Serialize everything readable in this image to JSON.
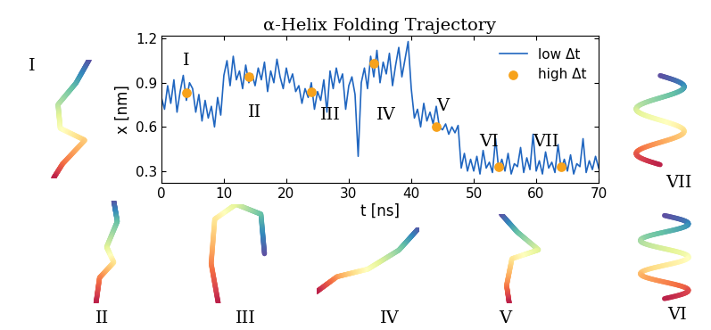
{
  "chart_data": {
    "type": "line",
    "title": "α-Helix Folding Trajectory",
    "x_label": "t [ns]",
    "y_label": "x [nm]",
    "xlim": [
      0,
      70
    ],
    "xticks": [
      0,
      10,
      20,
      30,
      40,
      50,
      60,
      70
    ],
    "ylim": [
      0.22,
      1.22
    ],
    "yticks": [
      0.3,
      0.6,
      0.9,
      1.2
    ],
    "legend": "upper right",
    "grid": false,
    "series": [
      {
        "name": "low Δt",
        "type": "line",
        "color": "#2066c0",
        "x": [
          0,
          0.5,
          1,
          1.5,
          2,
          2.5,
          3,
          3.5,
          4,
          4.5,
          5,
          5.5,
          6,
          6.5,
          7,
          7.5,
          8,
          8.5,
          9,
          9.5,
          10,
          10.5,
          11,
          11.5,
          12,
          12.5,
          13,
          13.5,
          14,
          14.5,
          15,
          15.5,
          16,
          16.5,
          17,
          17.5,
          18,
          18.5,
          19,
          19.5,
          20,
          20.5,
          21,
          21.5,
          22,
          22.5,
          23,
          23.5,
          24,
          24.5,
          25,
          25.5,
          26,
          26.5,
          27,
          27.5,
          28,
          28.5,
          29,
          29.5,
          30,
          30.5,
          31,
          31.5,
          32,
          32.5,
          33,
          33.5,
          34,
          34.5,
          35,
          35.5,
          36,
          36.5,
          37,
          37.5,
          38,
          38.5,
          39,
          39.5,
          40,
          40.5,
          41,
          41.5,
          42,
          42.5,
          43,
          43.5,
          44,
          44.5,
          45,
          45.5,
          46,
          46.5,
          47,
          47.5,
          48,
          48.5,
          49,
          49.5,
          50,
          50.5,
          51,
          51.5,
          52,
          52.5,
          53,
          53.5,
          54,
          54.5,
          55,
          55.5,
          56,
          56.5,
          57,
          57.5,
          58,
          58.5,
          59,
          59.5,
          60,
          60.5,
          61,
          61.5,
          62,
          62.5,
          63,
          63.5,
          64,
          64.5,
          65,
          65.5,
          66,
          66.5,
          67,
          67.5,
          68,
          68.5,
          69,
          69.5,
          70
        ],
        "values": [
          0.8,
          0.72,
          0.88,
          0.76,
          0.92,
          0.7,
          0.84,
          0.95,
          0.78,
          0.9,
          0.86,
          0.7,
          0.82,
          0.64,
          0.78,
          0.66,
          0.74,
          0.6,
          0.8,
          0.68,
          0.95,
          1.05,
          0.88,
          1.08,
          0.92,
          0.98,
          0.86,
          1.02,
          0.9,
          0.96,
          0.88,
          1.0,
          0.92,
          1.04,
          0.84,
          0.98,
          0.9,
          1.06,
          0.94,
          0.86,
          1.0,
          0.9,
          0.96,
          0.84,
          0.88,
          0.76,
          0.86,
          0.8,
          0.9,
          0.72,
          0.84,
          0.78,
          0.92,
          0.7,
          0.98,
          0.86,
          1.0,
          0.9,
          0.96,
          0.72,
          0.88,
          0.94,
          0.82,
          0.4,
          0.9,
          1.0,
          0.86,
          1.08,
          0.94,
          1.12,
          0.9,
          1.04,
          0.96,
          1.1,
          0.88,
          1.02,
          1.14,
          0.94,
          1.06,
          1.18,
          0.86,
          0.66,
          0.72,
          0.6,
          0.76,
          0.64,
          0.7,
          0.62,
          0.74,
          0.6,
          0.58,
          0.62,
          0.55,
          0.6,
          0.56,
          0.61,
          0.32,
          0.42,
          0.3,
          0.38,
          0.3,
          0.4,
          0.28,
          0.44,
          0.32,
          0.36,
          0.29,
          0.52,
          0.31,
          0.38,
          0.3,
          0.42,
          0.28,
          0.35,
          0.33,
          0.46,
          0.29,
          0.39,
          0.31,
          0.55,
          0.3,
          0.37,
          0.28,
          0.43,
          0.32,
          0.36,
          0.29,
          0.48,
          0.31,
          0.38,
          0.3,
          0.41,
          0.28,
          0.35,
          0.33,
          0.52,
          0.29,
          0.37,
          0.31,
          0.4,
          0.32
        ]
      },
      {
        "name": "high Δt",
        "type": "scatter",
        "color": "#f7a21b",
        "marker": "o",
        "x": [
          4,
          14,
          24,
          34,
          44,
          54,
          64
        ],
        "values": [
          0.83,
          0.94,
          0.84,
          1.03,
          0.6,
          0.33,
          0.33
        ]
      }
    ],
    "annotations": [
      {
        "text": "I",
        "x": 4,
        "y": 1.05
      },
      {
        "text": "II",
        "x": 15,
        "y": 0.7
      },
      {
        "text": "III",
        "x": 27,
        "y": 0.68
      },
      {
        "text": "IV",
        "x": 36,
        "y": 0.68
      },
      {
        "text": "V",
        "x": 45,
        "y": 0.74
      },
      {
        "text": "VI",
        "x": 52.5,
        "y": 0.5
      },
      {
        "text": "VII",
        "x": 61.5,
        "y": 0.5
      }
    ],
    "structure_labels": [
      "I",
      "II",
      "III",
      "IV",
      "V",
      "VI",
      "VII"
    ]
  }
}
